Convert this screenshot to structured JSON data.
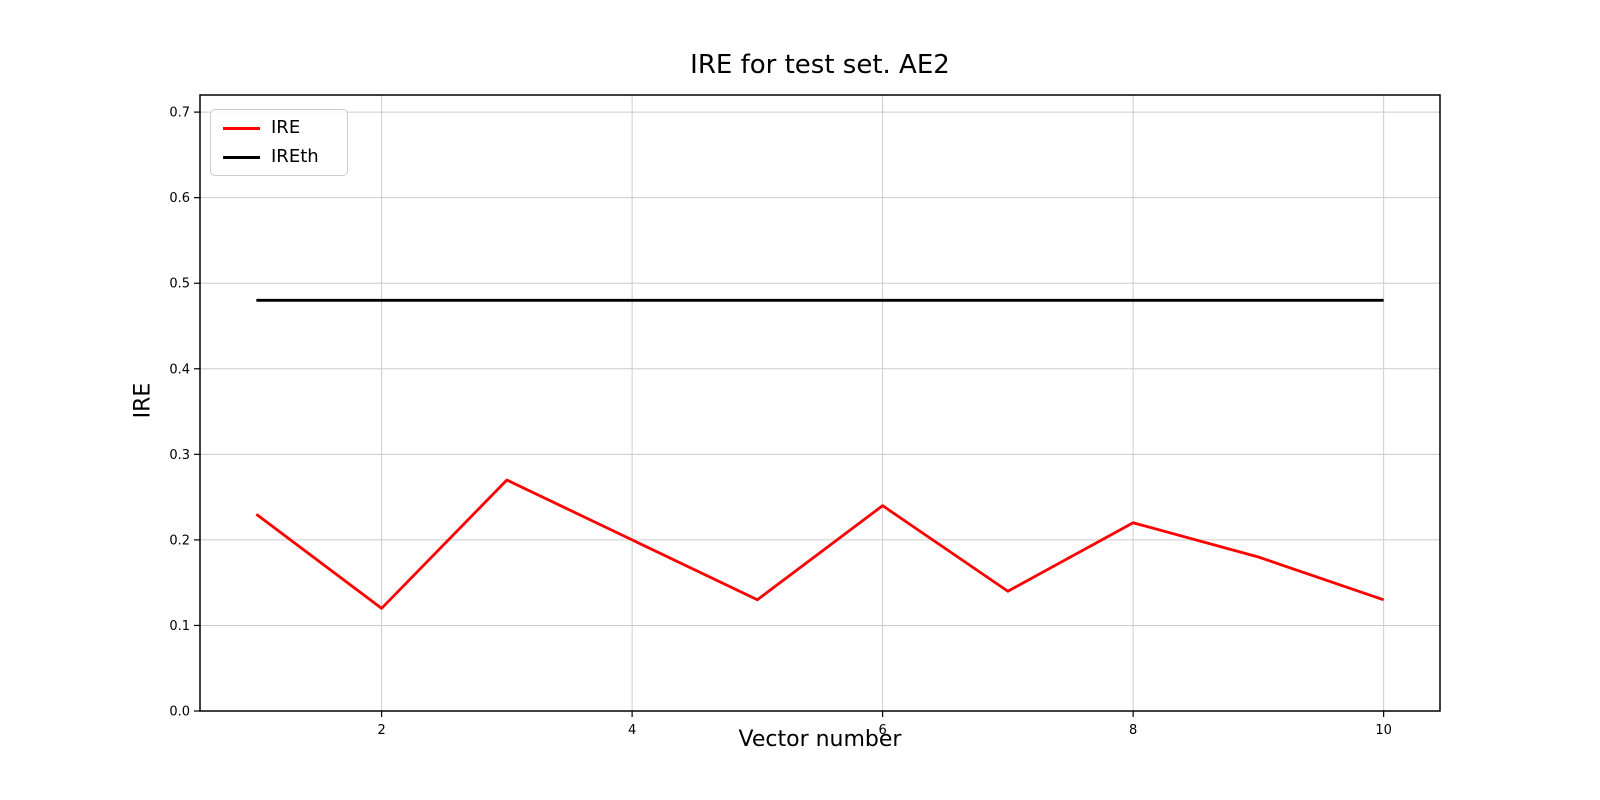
{
  "window": {
    "background": "#ffffff"
  },
  "chart_data": {
    "type": "line",
    "title": "IRE for test set. AE2",
    "xlabel": "Vector number",
    "ylabel": "IRE",
    "x": [
      1,
      2,
      3,
      4,
      5,
      6,
      7,
      8,
      9,
      10
    ],
    "series": [
      {
        "name": "IRE",
        "color": "#ff0000",
        "values": [
          0.23,
          0.12,
          0.27,
          0.2,
          0.13,
          0.24,
          0.14,
          0.22,
          0.18,
          0.13
        ]
      },
      {
        "name": "IREth",
        "color": "#000000",
        "values": [
          0.48,
          0.48,
          0.48,
          0.48,
          0.48,
          0.48,
          0.48,
          0.48,
          0.48,
          0.48
        ]
      }
    ],
    "xlim": [
      0.55,
      10.45
    ],
    "ylim": [
      0,
      0.72
    ],
    "xticks": [
      2,
      4,
      6,
      8,
      10
    ],
    "yticks": [
      0.0,
      0.1,
      0.2,
      0.3,
      0.4,
      0.5,
      0.6,
      0.7
    ],
    "ytick_decimals": 1,
    "grid": true,
    "grid_color": "#cccccc",
    "spine_color": "#000000",
    "tick_color": "#000000",
    "legend_position": "upper left",
    "legend_entries": [
      "IRE",
      "IREth"
    ]
  }
}
